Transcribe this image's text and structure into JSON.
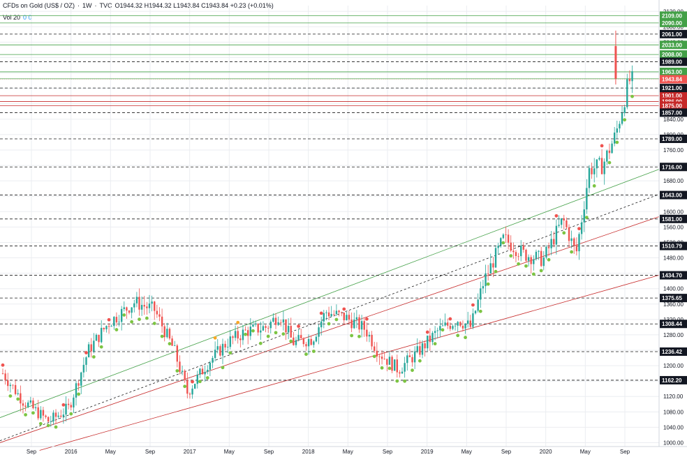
{
  "legend": {
    "symbol": "CFDs on Gold (US$ / OZ)",
    "interval": "1W",
    "source": "TVC",
    "ohlc": "O1944.32 H1944.32 L1943.84 C1943.84 +0.23 (+0.01%)",
    "volume_label": "Vol 20",
    "volume_values": "0 0"
  },
  "colors": {
    "up": "#26a69a",
    "down": "#ef5350",
    "support": "#7cc442",
    "resistance": "#ef5350",
    "orange": "#f9a825",
    "green_band": "#43a047",
    "red_band": "#c62828",
    "dashed": "#1a1a1a",
    "axis_text": "#131722",
    "grid": "#ebedf1"
  },
  "chart_data": {
    "type": "candlestick",
    "x_ticks": [
      "Sep",
      "2016",
      "May",
      "Sep",
      "2017",
      "May",
      "Sep",
      "2018",
      "May",
      "Sep",
      "2019",
      "May",
      "Sep",
      "2020",
      "May",
      "Sep"
    ],
    "y_ticks": [
      1000,
      1040,
      1080,
      1120,
      1160,
      1200,
      1240,
      1280,
      1320,
      1360,
      1400,
      1440,
      1480,
      1520,
      1560,
      1600,
      1640,
      1680,
      1720,
      1760,
      1800,
      1840,
      1880,
      1920,
      1960,
      2000,
      2040,
      2080,
      2120
    ],
    "ylim": [
      990,
      2135
    ],
    "dashed_levels": [
      {
        "value": 2061.0,
        "label": "2061.00"
      },
      {
        "value": 1989.0,
        "label": "1989.00"
      },
      {
        "value": 1921.0,
        "label": "1921.00"
      },
      {
        "value": 1857.0,
        "label": "1857.00"
      },
      {
        "value": 1789.0,
        "label": "1789.00"
      },
      {
        "value": 1716.0,
        "label": "1716.00"
      },
      {
        "value": 1643.0,
        "label": "1643.00"
      },
      {
        "value": 1581.0,
        "label": "1581.00"
      },
      {
        "value": 1510.79,
        "label": "1510.79"
      },
      {
        "value": 1434.7,
        "label": "1434.70"
      },
      {
        "value": 1375.65,
        "label": "1375.65"
      },
      {
        "value": 1308.44,
        "label": "1308.44"
      },
      {
        "value": 1236.42,
        "label": "1236.42"
      },
      {
        "value": 1162.2,
        "label": "1162.20"
      }
    ],
    "green_levels": [
      {
        "value": 2109.0,
        "label": "2109.00"
      },
      {
        "value": 2090.0,
        "label": "2090.00"
      },
      {
        "value": 2033.0,
        "label": "2033.00"
      },
      {
        "value": 2008.0,
        "label": "2008.00"
      },
      {
        "value": 1963.0,
        "label": "1963.00"
      },
      {
        "value": 1945.0,
        "label": "1945.00"
      }
    ],
    "red_levels": [
      {
        "value": 1901.0,
        "label": "1901.00"
      },
      {
        "value": 1886.0,
        "label": "1886.00"
      },
      {
        "value": 1875.0,
        "label": "1875.00"
      }
    ],
    "current_price": {
      "value": 1943.84,
      "label": "1943.84"
    },
    "trend_lines": [
      {
        "color": "green",
        "from": [
          0.0,
          1065
        ],
        "to": [
          1.0,
          1710
        ]
      },
      {
        "color": "dashed",
        "from": [
          0.0,
          1005
        ],
        "to": [
          1.0,
          1645
        ]
      },
      {
        "color": "red",
        "from": [
          0.0,
          1000
        ],
        "to": [
          1.0,
          1587
        ]
      },
      {
        "color": "red",
        "from": [
          0.06,
          980
        ],
        "to": [
          1.0,
          1435
        ]
      }
    ],
    "anchor_path": [
      [
        0.0,
        1180
      ],
      [
        0.03,
        1110
      ],
      [
        0.07,
        1055
      ],
      [
        0.1,
        1090
      ],
      [
        0.13,
        1240
      ],
      [
        0.16,
        1310
      ],
      [
        0.2,
        1365
      ],
      [
        0.23,
        1345
      ],
      [
        0.26,
        1240
      ],
      [
        0.28,
        1130
      ],
      [
        0.31,
        1205
      ],
      [
        0.34,
        1260
      ],
      [
        0.37,
        1290
      ],
      [
        0.4,
        1300
      ],
      [
        0.42,
        1335
      ],
      [
        0.44,
        1260
      ],
      [
        0.47,
        1270
      ],
      [
        0.49,
        1340
      ],
      [
        0.52,
        1325
      ],
      [
        0.55,
        1295
      ],
      [
        0.57,
        1235
      ],
      [
        0.6,
        1190
      ],
      [
        0.63,
        1235
      ],
      [
        0.66,
        1290
      ],
      [
        0.69,
        1320
      ],
      [
        0.71,
        1300
      ],
      [
        0.73,
        1420
      ],
      [
        0.76,
        1530
      ],
      [
        0.79,
        1490
      ],
      [
        0.82,
        1475
      ],
      [
        0.85,
        1580
      ],
      [
        0.87,
        1490
      ],
      [
        0.89,
        1710
      ],
      [
        0.91,
        1720
      ],
      [
        0.93,
        1800
      ],
      [
        0.95,
        1940
      ]
    ]
  }
}
